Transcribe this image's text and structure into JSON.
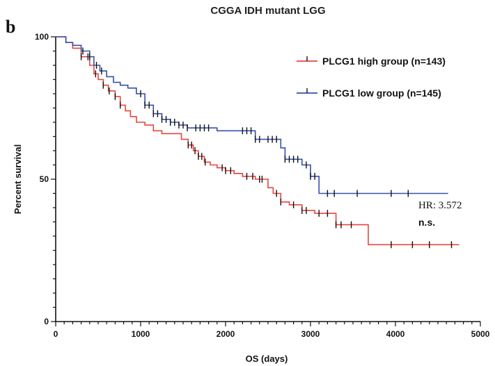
{
  "chart_data": {
    "type": "line",
    "panel_label": "b",
    "title": "CGGA IDH mutant LGG",
    "xlabel": "OS (days)",
    "ylabel": "Percent survival",
    "xlim": [
      0,
      5000
    ],
    "ylim": [
      0,
      100
    ],
    "x_ticks": [
      "0",
      "1000",
      "2000",
      "3000",
      "4000",
      "5000"
    ],
    "y_ticks": [
      "0",
      "50",
      "100"
    ],
    "legend_position": "top-right",
    "annotations": {
      "hr": "HR: 3.572",
      "significance": "n.s."
    },
    "series": [
      {
        "name": "PLCG1 high group (n=143)",
        "color": "#e8453c",
        "x": [
          0,
          120,
          200,
          300,
          400,
          450,
          500,
          560,
          620,
          700,
          760,
          820,
          880,
          950,
          1050,
          1150,
          1250,
          1380,
          1480,
          1560,
          1620,
          1680,
          1750,
          1820,
          1900,
          2000,
          2100,
          2200,
          2350,
          2500,
          2560,
          2650,
          2750,
          2900,
          3050,
          3300,
          3680,
          4750
        ],
        "y": [
          100,
          98,
          96,
          93,
          90,
          87,
          85,
          83,
          81,
          79,
          76,
          74,
          72,
          70,
          69,
          67,
          66,
          66,
          64,
          62,
          60,
          58,
          56,
          55,
          54,
          53,
          52,
          51,
          50,
          47,
          45,
          42,
          41,
          39,
          38,
          34,
          27,
          27
        ],
        "censor_x": [
          300,
          380,
          470,
          560,
          630,
          700,
          760,
          1560,
          1600,
          1640,
          1680,
          1720,
          1760,
          1960,
          2000,
          2060,
          2250,
          2320,
          2400,
          2430,
          2600,
          2650,
          2800,
          2900,
          2950,
          3100,
          3200,
          3300,
          3360,
          3480,
          3950,
          4200,
          4400,
          4660
        ]
      },
      {
        "name": "PLCG1 low group (n=145)",
        "color": "#3650a8",
        "x": [
          0,
          120,
          200,
          300,
          400,
          450,
          520,
          600,
          680,
          760,
          850,
          950,
          1050,
          1150,
          1250,
          1350,
          1450,
          1550,
          1650,
          1750,
          1900,
          2100,
          2350,
          2650,
          2700,
          2900,
          3000,
          3100,
          4620
        ],
        "y": [
          100,
          98,
          97,
          95,
          93,
          90,
          88,
          86,
          84,
          83,
          82,
          80,
          76,
          73,
          71,
          70,
          69,
          68,
          68,
          68,
          67,
          67,
          64,
          61,
          57,
          55,
          51,
          45,
          45
        ],
        "censor_x": [
          320,
          400,
          480,
          540,
          1000,
          1050,
          1100,
          1150,
          1200,
          1250,
          1300,
          1350,
          1400,
          1450,
          1500,
          1550,
          1650,
          1700,
          1750,
          1800,
          2200,
          2250,
          2300,
          2350,
          2400,
          2500,
          2550,
          2600,
          2700,
          2750,
          2800,
          2850,
          2950,
          3000,
          3050,
          3200,
          3280,
          3550,
          3950,
          4150
        ]
      }
    ]
  }
}
